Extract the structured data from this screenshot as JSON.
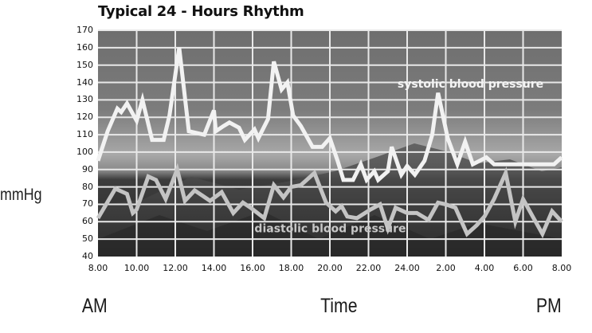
{
  "chart_data": {
    "type": "line",
    "title": "Typical 24 - Hours Rhythm",
    "xlabel": "Time",
    "ylabel": "mmHg",
    "x_left_label": "AM",
    "x_right_label": "PM",
    "ylim": [
      40,
      170
    ],
    "yticks": [
      "170",
      "160",
      "150",
      "140",
      "130",
      "120",
      "110",
      "100",
      "90",
      "80",
      "70",
      "60",
      "50",
      "40"
    ],
    "xticks": [
      "8.00",
      "10.00",
      "12.00",
      "14.00",
      "16.00",
      "18.00",
      "20.00",
      "22.00",
      "24.00",
      "2.00",
      "4.00",
      "6.00",
      "8.00"
    ],
    "grid": true,
    "background": "grayscale mountain night-sky photo",
    "series": [
      {
        "name": "systolic blood pressure",
        "color": "#f2f2f2",
        "x": [
          0,
          0.5,
          1,
          1.2,
          1.5,
          2,
          2.3,
          2.8,
          3.4,
          3.7,
          4.2,
          4.7,
          5.5,
          6,
          6.1,
          6.5,
          6.8,
          7.3,
          7.6,
          8.1,
          8.3,
          8.8,
          9.1,
          9.5,
          9.8,
          10.1,
          10.5,
          11.1,
          11.4,
          11.6,
          12,
          12.4,
          12.7,
          13.2,
          13.6,
          13.9,
          14.3,
          14.5,
          15,
          15.2,
          15.7,
          16,
          16.4,
          16.9,
          17.3,
          17.6,
          18.1,
          18.6,
          19,
          19.4,
          20.1,
          20.5,
          21,
          21.5,
          22.2,
          22.5,
          23,
          23.2,
          23.6,
          24
        ],
        "y": [
          95,
          112,
          125,
          123,
          128,
          118,
          130,
          107,
          107,
          121,
          160,
          112,
          110,
          124,
          112,
          115,
          117,
          114,
          107,
          113,
          108,
          119,
          152,
          136,
          140,
          121,
          115,
          103,
          103,
          103,
          108,
          95,
          84,
          84,
          93,
          84,
          89,
          84,
          89,
          103,
          87,
          92,
          87,
          95,
          110,
          134,
          108,
          93,
          106,
          93,
          97,
          93,
          93,
          93,
          93,
          93,
          93,
          93,
          93,
          97
        ],
        "label_position": {
          "x": 15.5,
          "y": 137
        }
      },
      {
        "name": "diastolic blood pressure",
        "color": "#c4c4c4",
        "x": [
          0,
          0.9,
          1.5,
          1.8,
          2,
          2.6,
          3.0,
          3.5,
          4.1,
          4.5,
          5.0,
          5.8,
          6.4,
          7.0,
          7.5,
          7.9,
          8.6,
          9.1,
          9.6,
          10.0,
          10.5,
          11.2,
          11.8,
          12.3,
          12.6,
          12.9,
          13.4,
          14.1,
          14.6,
          15.0,
          15.4,
          16.0,
          16.5,
          17.1,
          17.6,
          18.0,
          18.5,
          19.1,
          19.6,
          20.0,
          20.5,
          21.1,
          21.6,
          22.0,
          22.5,
          23.0,
          23.5,
          24
        ],
        "y": [
          62,
          79,
          76,
          65,
          67,
          86,
          84,
          73,
          90,
          72,
          78,
          72,
          77,
          65,
          71,
          68,
          62,
          81,
          74,
          80,
          81,
          88,
          71,
          66,
          69,
          63,
          62,
          67,
          70,
          56,
          68,
          65,
          65,
          61,
          71,
          70,
          68,
          53,
          58,
          63,
          73,
          88,
          60,
          73,
          63,
          53,
          66,
          60
        ],
        "label_position": {
          "x": 8.1,
          "y": 54
        }
      }
    ]
  }
}
